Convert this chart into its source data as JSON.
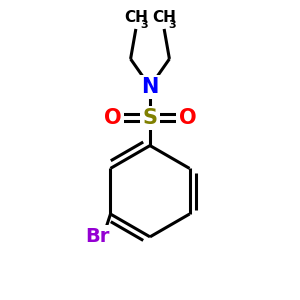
{
  "bg_color": "#ffffff",
  "line_color": "#000000",
  "N_color": "#0000ff",
  "S_color": "#808000",
  "O_color": "#ff0000",
  "Br_color": "#9400d3",
  "line_width": 2.2,
  "figsize": [
    3.0,
    3.0
  ],
  "dpi": 100,
  "xlim": [
    0,
    10
  ],
  "ylim": [
    0,
    10
  ]
}
